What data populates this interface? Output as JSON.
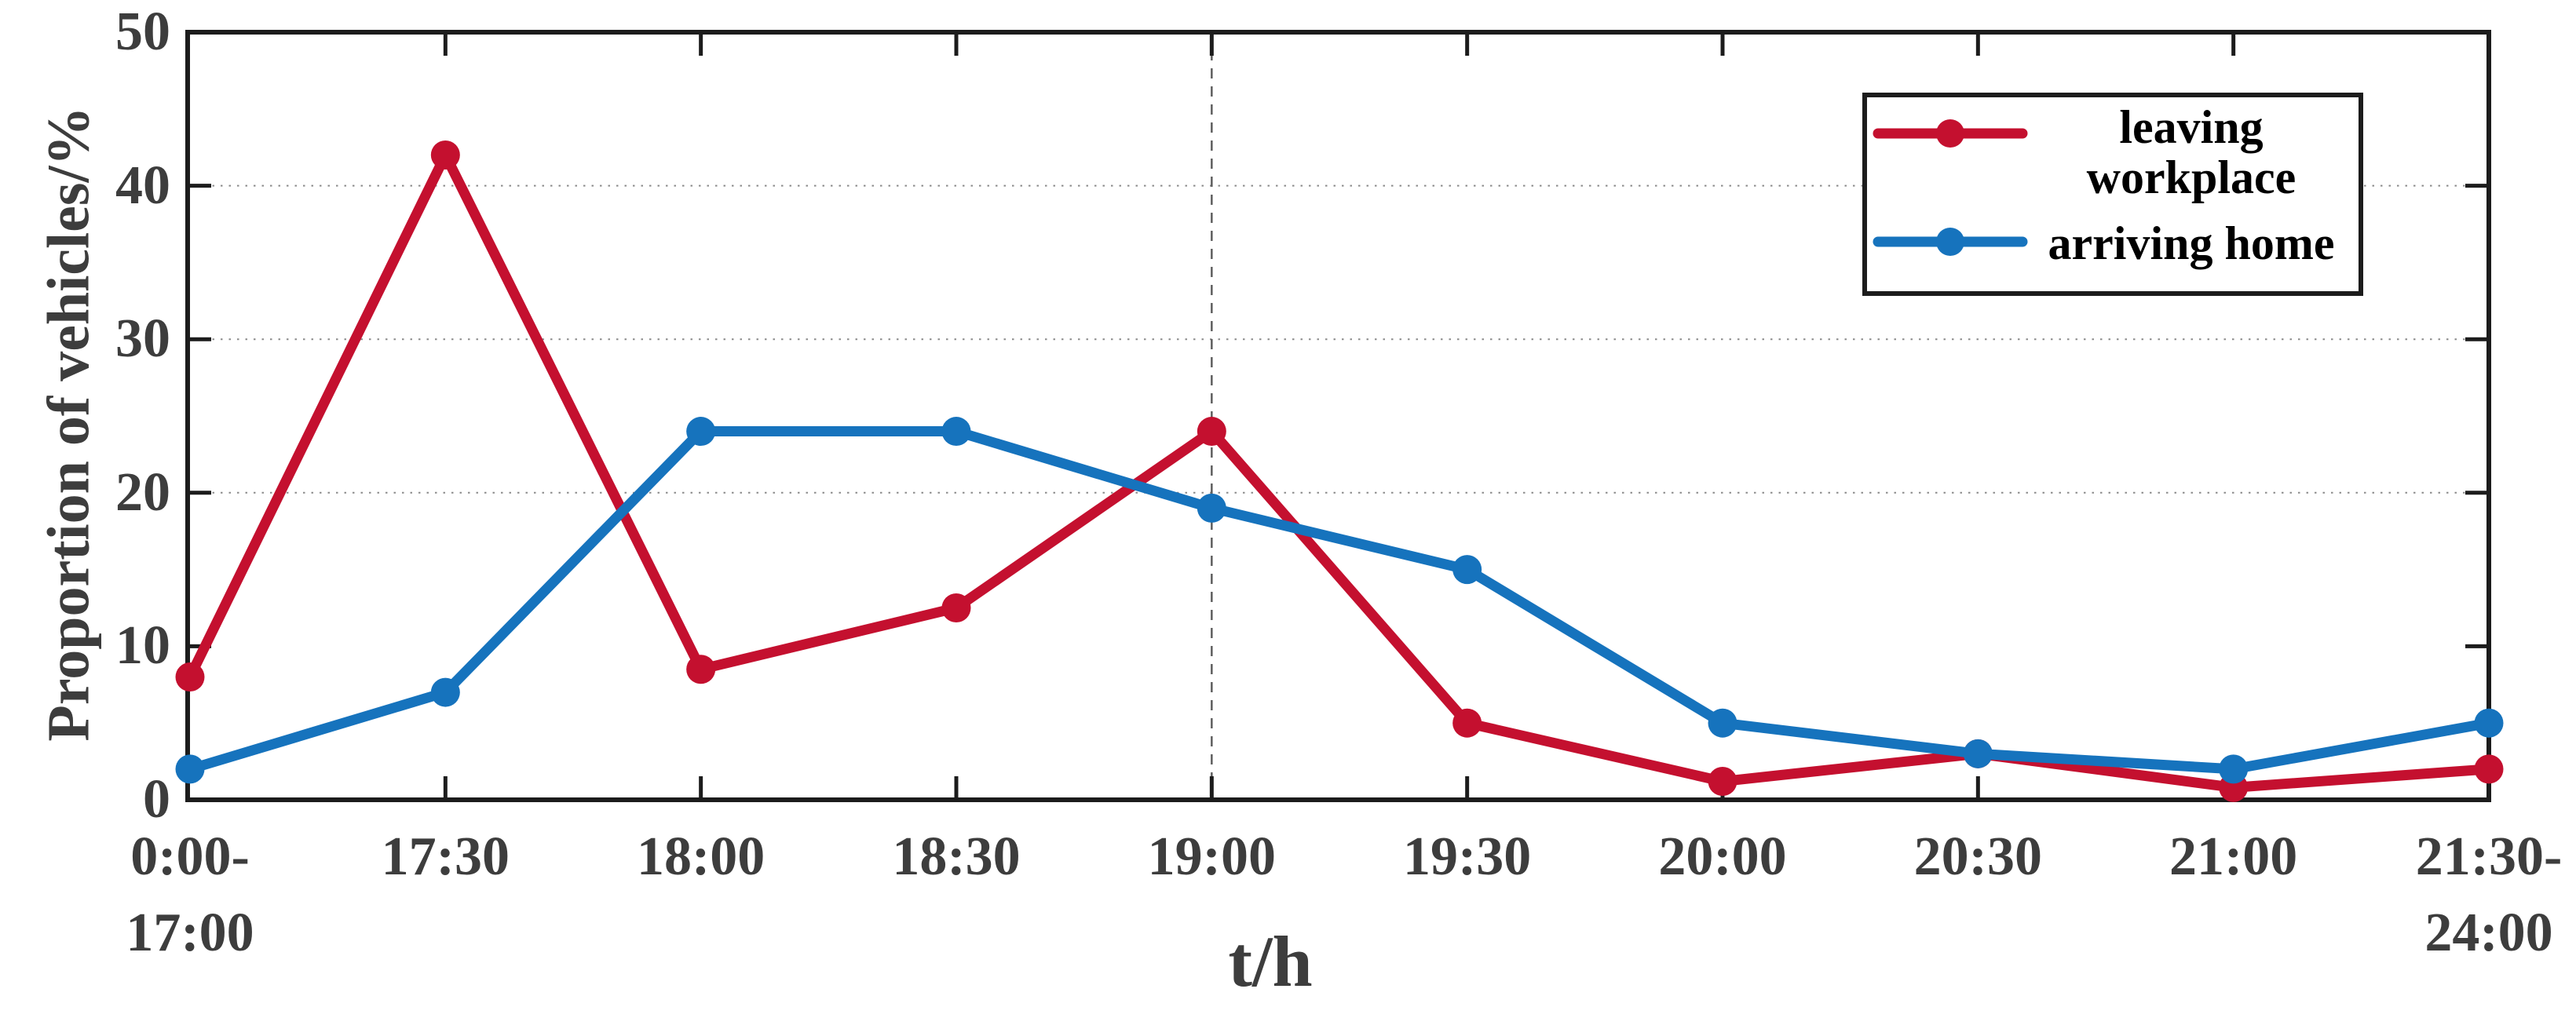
{
  "chart_data": {
    "type": "line",
    "title": "",
    "xlabel": "t/h",
    "ylabel": "Proportion of vehicles/%",
    "categories": [
      "0:00-\n17:00",
      "17:30",
      "18:00",
      "18:30",
      "19:00",
      "19:30",
      "20:00",
      "20:30",
      "21:00",
      "21:30-\n24:00"
    ],
    "y_ticks": [
      0,
      10,
      20,
      30,
      40,
      50
    ],
    "ylim": [
      0,
      50
    ],
    "grid": {
      "horizontal_dotted_at": [
        20,
        30,
        40
      ],
      "vertical_dashed_at_category": "19:00"
    },
    "legend_position": "top-right",
    "series": [
      {
        "name": "leaving workplace",
        "color": "#c4102f",
        "marker": "circle",
        "values": [
          8,
          42,
          8.5,
          12.5,
          24,
          5,
          1.2,
          3,
          0.8,
          2
        ]
      },
      {
        "name": "arriving home",
        "color": "#1673bd",
        "marker": "circle",
        "values": [
          2,
          7,
          24,
          24,
          19,
          15,
          5,
          3,
          2,
          5
        ]
      }
    ]
  },
  "colors": {
    "background": "#ffffff",
    "axis": "#1c1c1c",
    "tick_label": "#3d3d3d",
    "grid_dotted": "#8a8a8a",
    "grid_dashed": "#5f5f5f",
    "legend_border": "#1c1c1c",
    "legend_text": "#000000"
  }
}
